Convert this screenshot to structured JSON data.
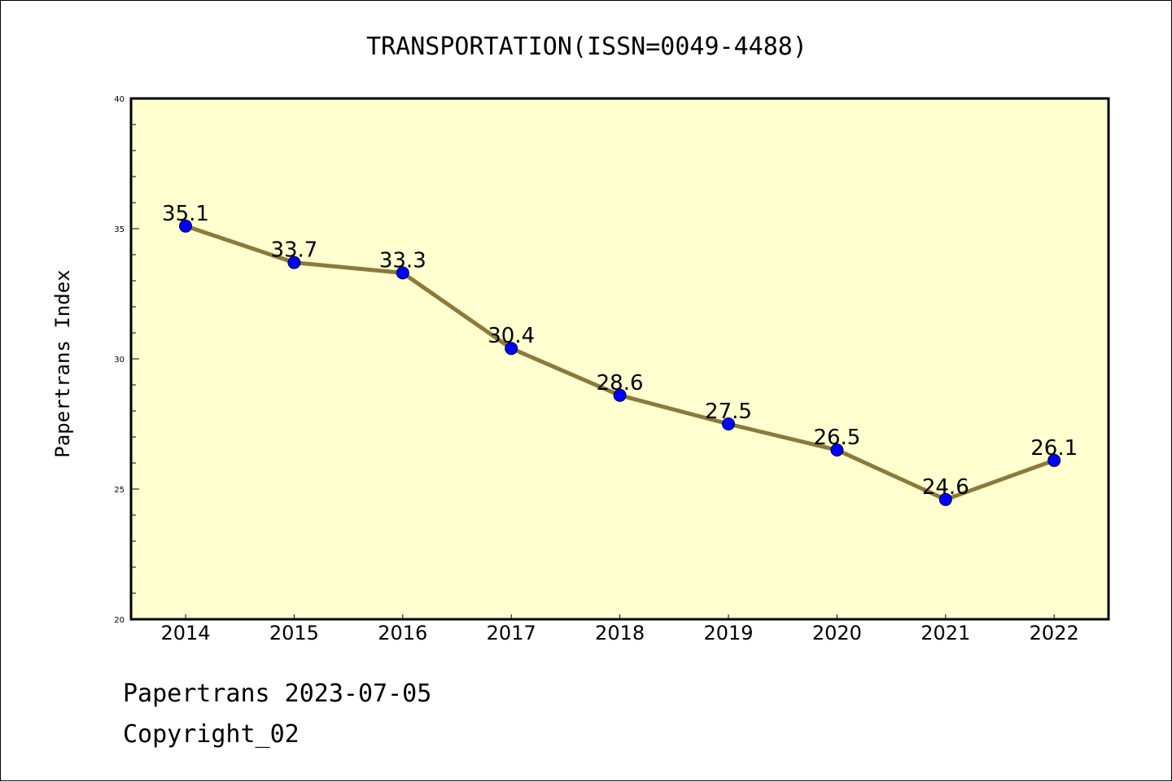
{
  "chart_data": {
    "type": "line",
    "title": "TRANSPORTATION(ISSN=0049-4488)",
    "xlabel": "",
    "ylabel": "Papertrans Index",
    "categories": [
      "2014",
      "2015",
      "2016",
      "2017",
      "2018",
      "2019",
      "2020",
      "2021",
      "2022"
    ],
    "values": [
      35.1,
      33.7,
      33.3,
      30.4,
      28.6,
      27.5,
      26.5,
      24.6,
      26.1
    ],
    "data_labels": [
      "35.1",
      "33.7",
      "33.3",
      "30.4",
      "28.6",
      "27.5",
      "26.5",
      "24.6",
      "26.1"
    ],
    "ylim": [
      20,
      40
    ],
    "yticks": [
      20,
      25,
      30,
      35,
      40
    ],
    "grid": false,
    "legend": "none",
    "colors": {
      "plot_background": "#ffffd0",
      "line": "#8b7a3a",
      "marker": "#0000ff",
      "axis": "#000000"
    }
  },
  "footer": {
    "date_line": "Papertrans 2023-07-05",
    "copyright_line": "Copyright_02"
  }
}
